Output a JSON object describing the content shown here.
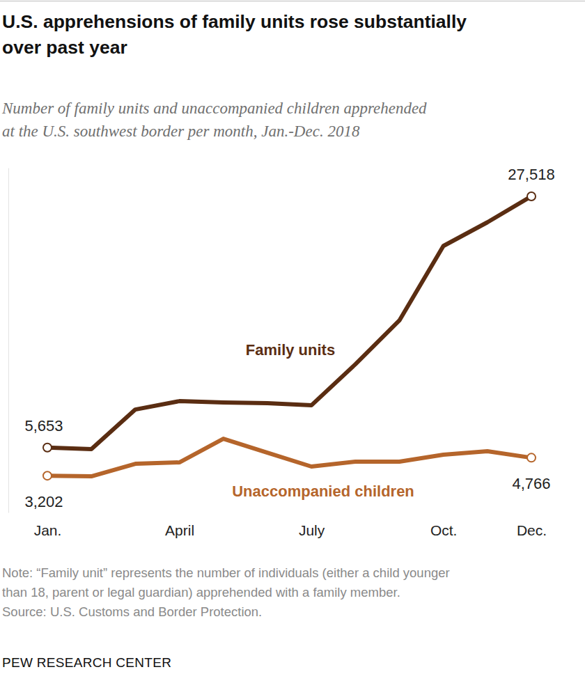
{
  "chart_data": {
    "type": "line",
    "title": [
      "U.S. apprehensions of family units rose substantially",
      "over past year"
    ],
    "subtitle": [
      "Number of family units and unaccompanied children apprehended",
      "at the U.S. southwest border per month, Jan.-Dec. 2018"
    ],
    "categories": [
      "Jan.",
      null,
      null,
      "April",
      null,
      null,
      "July",
      null,
      null,
      "Oct.",
      null,
      "Dec."
    ],
    "series": [
      {
        "name": "Family units",
        "color": "#5a2d12",
        "marker": "circle",
        "line_style": "solid",
        "values": [
          5653,
          5512,
          8964,
          9691,
          9570,
          9509,
          9328,
          12901,
          16717,
          23198,
          25257,
          27518
        ],
        "value_labels": [
          "5,653",
          null,
          null,
          null,
          null,
          null,
          null,
          null,
          null,
          null,
          null,
          "27,518"
        ]
      },
      {
        "name": "Unaccompanied children",
        "color": "#b5652b",
        "marker": "circle",
        "line_style": "solid",
        "values": [
          3202,
          3150,
          4240,
          4361,
          6420,
          5209,
          4000,
          4422,
          4422,
          5027,
          5330,
          4766
        ],
        "value_labels": [
          "3,202",
          null,
          null,
          null,
          null,
          null,
          null,
          null,
          null,
          null,
          null,
          "4,766"
        ]
      }
    ],
    "ylim": [
      0,
      30000
    ],
    "yticks": [],
    "tick_labels": "x",
    "grid": false,
    "note": [
      "Note: “Family unit” represents the number of individuals (either a child younger",
      "than 18, parent or legal guardian) apprehended with a family member."
    ],
    "source": "Source: U.S. Customs and Border Protection.",
    "credit": "PEW RESEARCH CENTER"
  }
}
